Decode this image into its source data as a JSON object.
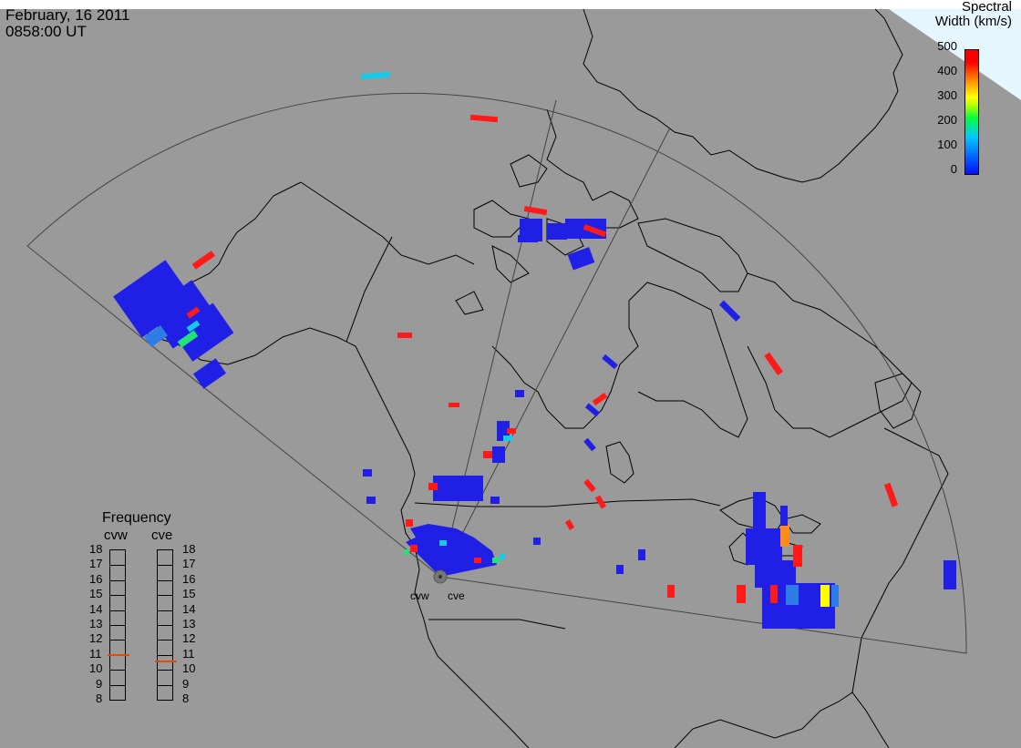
{
  "header": {
    "date": "February, 16 2011",
    "time": "0858:00 UT"
  },
  "colorbar": {
    "title_line1": "Spectral",
    "title_line2": "Width (km/s)",
    "ticks": [
      "500",
      "400",
      "300",
      "200",
      "100",
      "0"
    ],
    "colors": {
      "low": "#0010ff",
      "mid": "#00ff40",
      "high": "#ff0000"
    }
  },
  "frequency_panel": {
    "title": "Frequency",
    "radars": [
      "cvw",
      "cve"
    ],
    "scale": [
      "18",
      "17",
      "16",
      "15",
      "14",
      "13",
      "12",
      "11",
      "10",
      "9",
      "8"
    ],
    "cvw_value_mhz": 10.9,
    "cve_value_mhz": 10.5
  },
  "radar_sites": [
    "cvw",
    "cve"
  ],
  "colors": {
    "background": "#9a9a9a",
    "scatter_blue": "#1f1fe6",
    "scatter_red": "#ff1a1a",
    "scatter_cyan": "#17c9e6",
    "scatter_green": "#22e07a",
    "scatter_yellow": "#ffff00",
    "scatter_orange": "#ff8c1a"
  }
}
